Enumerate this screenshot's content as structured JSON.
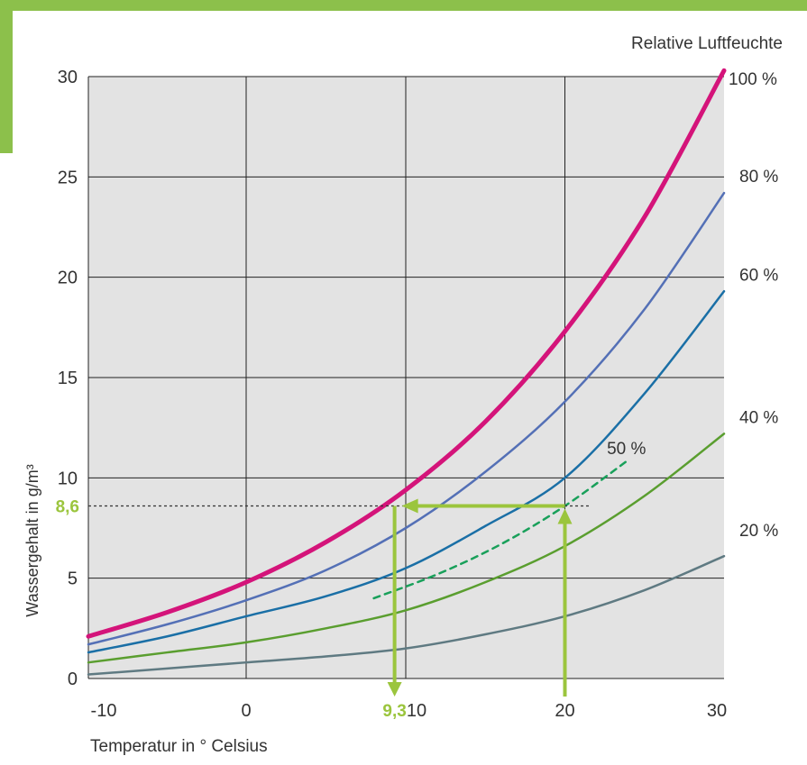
{
  "chart_data": {
    "type": "line",
    "title": "",
    "xlabel": "Temperatur in ° Celsius",
    "ylabel": "Wassergehalt in g/m³",
    "right_axis_title": "Relative Luftfeuchte",
    "xlim": [
      -10,
      30
    ],
    "ylim": [
      0,
      30
    ],
    "grid": true,
    "x_ticks": [
      -10,
      0,
      10,
      20,
      30
    ],
    "x_tick_labels": [
      "-10",
      "0",
      "10",
      "20",
      "30"
    ],
    "y_ticks": [
      0,
      5,
      10,
      15,
      20,
      25,
      30
    ],
    "y_tick_labels": [
      "0",
      "5",
      "10",
      "15",
      "20",
      "25",
      "30"
    ],
    "x": [
      -10,
      -5,
      0,
      5,
      10,
      15,
      20,
      25,
      30
    ],
    "series": [
      {
        "name": "100 %",
        "label_y": 30,
        "color": "#d4147a",
        "width": 5,
        "dashed": false,
        "x": [
          -10,
          -5,
          0,
          5,
          10,
          15,
          20,
          25,
          30
        ],
        "values": [
          2.1,
          3.3,
          4.8,
          6.8,
          9.4,
          12.8,
          17.3,
          23.0,
          30.3
        ]
      },
      {
        "name": "80 %",
        "label_y": 24.2,
        "color": "#5470b6",
        "width": 2.5,
        "dashed": false,
        "x": [
          -10,
          -5,
          0,
          5,
          10,
          15,
          20,
          25,
          30
        ],
        "values": [
          1.7,
          2.7,
          3.9,
          5.4,
          7.5,
          10.3,
          13.8,
          18.4,
          24.2
        ]
      },
      {
        "name": "60 %",
        "label_y": 19.3,
        "color": "#1a6fa6",
        "width": 2.5,
        "dashed": false,
        "x": [
          -10,
          -5,
          0,
          5,
          10,
          15,
          20,
          25,
          30
        ],
        "values": [
          1.3,
          2.1,
          3.1,
          4.1,
          5.5,
          7.6,
          10.0,
          14.2,
          19.3
        ]
      },
      {
        "name": "50 %",
        "label_y": 11.5,
        "color": "#19a05a",
        "width": 2.5,
        "dashed": true,
        "x": [
          8,
          12,
          16,
          20,
          24
        ],
        "values": [
          4.0,
          5.2,
          6.7,
          8.6,
          10.9
        ]
      },
      {
        "name": "40 %",
        "label_y": 12.2,
        "color": "#5a9e2f",
        "width": 2.5,
        "dashed": false,
        "x": [
          -10,
          -5,
          0,
          5,
          10,
          15,
          20,
          25,
          30
        ],
        "values": [
          0.8,
          1.3,
          1.8,
          2.5,
          3.4,
          4.8,
          6.6,
          9.1,
          12.2
        ]
      },
      {
        "name": "20 %",
        "label_y": 6.2,
        "color": "#5f7a82",
        "width": 2.5,
        "dashed": false,
        "x": [
          -10,
          -5,
          0,
          5,
          10,
          15,
          20,
          25,
          30
        ],
        "values": [
          0.2,
          0.5,
          0.8,
          1.1,
          1.5,
          2.2,
          3.1,
          4.4,
          6.1
        ]
      }
    ],
    "annotations": {
      "y_marker_label": "8,6",
      "y_marker_value": 8.6,
      "x_marker_label": "9,3",
      "x_marker_value": 9.3,
      "start_temperature": 20,
      "dotted_line_x_end": 21.5,
      "color": "#9bc53d"
    }
  },
  "colors": {
    "plot_background": "#e3e3e3",
    "grid": "#222222",
    "accent_bar": "#8cc04b",
    "text": "#333333"
  }
}
